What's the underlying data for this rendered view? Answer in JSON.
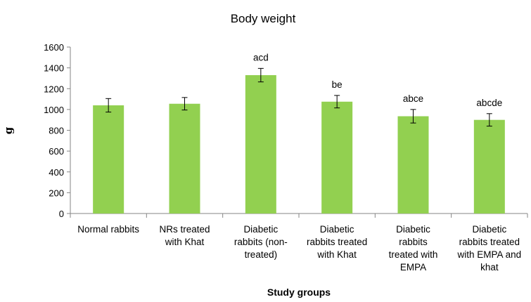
{
  "chart_data": {
    "type": "bar",
    "title": "Body weight",
    "xlabel": "Study groups",
    "ylabel": "g",
    "ylim": [
      0,
      1600
    ],
    "yticks": [
      0,
      200,
      400,
      600,
      800,
      1000,
      1200,
      1400,
      1600
    ],
    "grid": false,
    "legend": "none",
    "bar_color": "#92d050",
    "categories": [
      [
        "Normal rabbits"
      ],
      [
        "NRs treated",
        "with Khat"
      ],
      [
        "Diabetic",
        "rabbits (non-",
        "treated)"
      ],
      [
        "Diabetic",
        "rabbits treated",
        "with Khat"
      ],
      [
        "Diabetic",
        "rabbits",
        "treated with",
        "EMPA"
      ],
      [
        "Diabetic",
        "rabbits treated",
        "with EMPA and",
        "khat"
      ]
    ],
    "values": [
      1040,
      1055,
      1330,
      1075,
      935,
      900
    ],
    "error": [
      65,
      60,
      65,
      60,
      65,
      60
    ],
    "annotations": [
      "",
      "",
      "acd",
      "be",
      "abce",
      "abcde"
    ]
  }
}
